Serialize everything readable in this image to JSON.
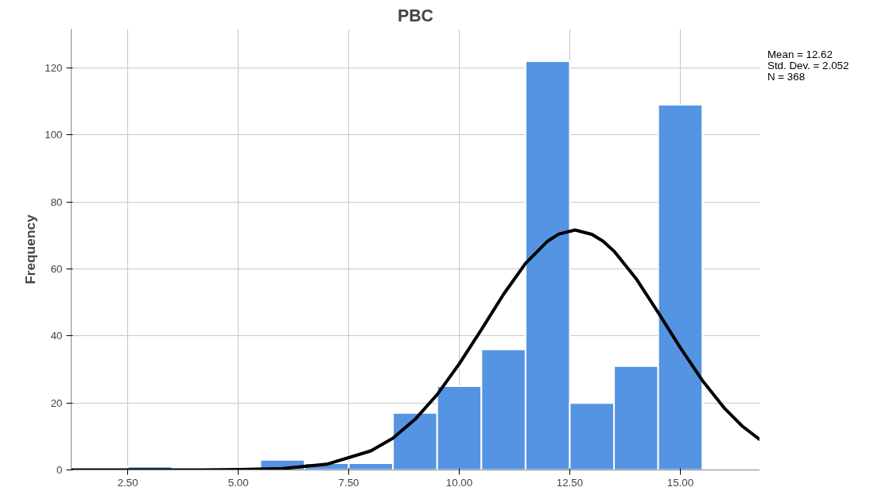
{
  "chart_data": {
    "type": "histogram",
    "title": "PBC",
    "ylabel": "Frequency",
    "bins": [
      2.5,
      3.5,
      4.5,
      5.5,
      6.5,
      7.5,
      8.5,
      9.5,
      10.5,
      11.5,
      12.5,
      13.5,
      14.5,
      15.5
    ],
    "values": [
      1,
      0,
      0,
      3,
      2,
      2,
      17,
      25,
      36,
      122,
      20,
      31,
      109
    ],
    "color": "#5594e3",
    "series": [
      {
        "type": "line",
        "color": "#000000",
        "x": [
          1.22,
          4,
          5,
          6,
          7,
          8,
          8.5,
          9,
          9.5,
          10,
          10.5,
          11,
          11.5,
          12,
          12.25,
          12.62,
          13,
          13.25,
          13.5,
          14,
          14.5,
          15,
          15.5,
          16,
          16.4,
          16.8
        ],
        "values": [
          0,
          0,
          0.1,
          0.4,
          1.7,
          5.7,
          9.5,
          15.1,
          22.5,
          31.7,
          41.9,
          52.4,
          61.7,
          68.3,
          70.4,
          71.6,
          70.3,
          68.3,
          65.3,
          57.1,
          47.0,
          36.5,
          26.7,
          18.4,
          13.1,
          9.0
        ]
      }
    ],
    "xlim": [
      1.22,
      16.8
    ],
    "ylim": [
      0,
      131.6
    ],
    "xticks": [
      {
        "value": 2.5,
        "label": "2.50"
      },
      {
        "value": 5,
        "label": "5.00"
      },
      {
        "value": 7.5,
        "label": "7.50"
      },
      {
        "value": 10,
        "label": "10.00"
      },
      {
        "value": 12.5,
        "label": "12.50"
      },
      {
        "value": 15,
        "label": "15.00"
      }
    ],
    "yticks": [
      0,
      20,
      40,
      60,
      80,
      100,
      120
    ],
    "grid": true,
    "annotations": [
      "Mean = 12.62",
      "Std. Dev. = 2.052",
      "N = 368"
    ]
  }
}
